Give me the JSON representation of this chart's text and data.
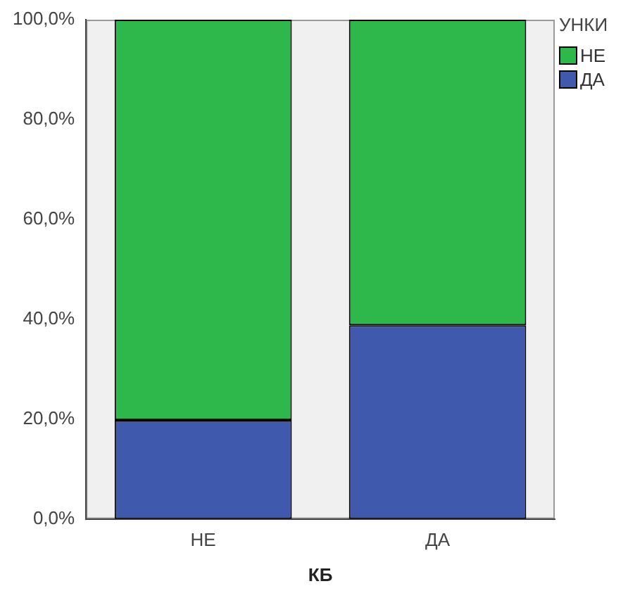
{
  "chart_data": {
    "type": "bar",
    "stacked": true,
    "xlabel": "КБ",
    "legend_title": "УНКИ",
    "legend": "top right",
    "categories": [
      "НЕ",
      "ДА"
    ],
    "series": [
      {
        "name": "ДА",
        "color": "#3f5aad",
        "values": [
          19.8,
          38.8
        ]
      },
      {
        "name": "НЕ",
        "color": "#2eb84b",
        "values": [
          80.2,
          61.2
        ]
      }
    ],
    "ylim": [
      0,
      100
    ],
    "yticks": [
      {
        "value": 0,
        "label": "0,0%"
      },
      {
        "value": 20,
        "label": "20,0%"
      },
      {
        "value": 40,
        "label": "40,0%"
      },
      {
        "value": 60,
        "label": "60,0%"
      },
      {
        "value": 80,
        "label": "80,0%"
      },
      {
        "value": 100,
        "label": "100,0%"
      }
    ],
    "grid": false
  }
}
